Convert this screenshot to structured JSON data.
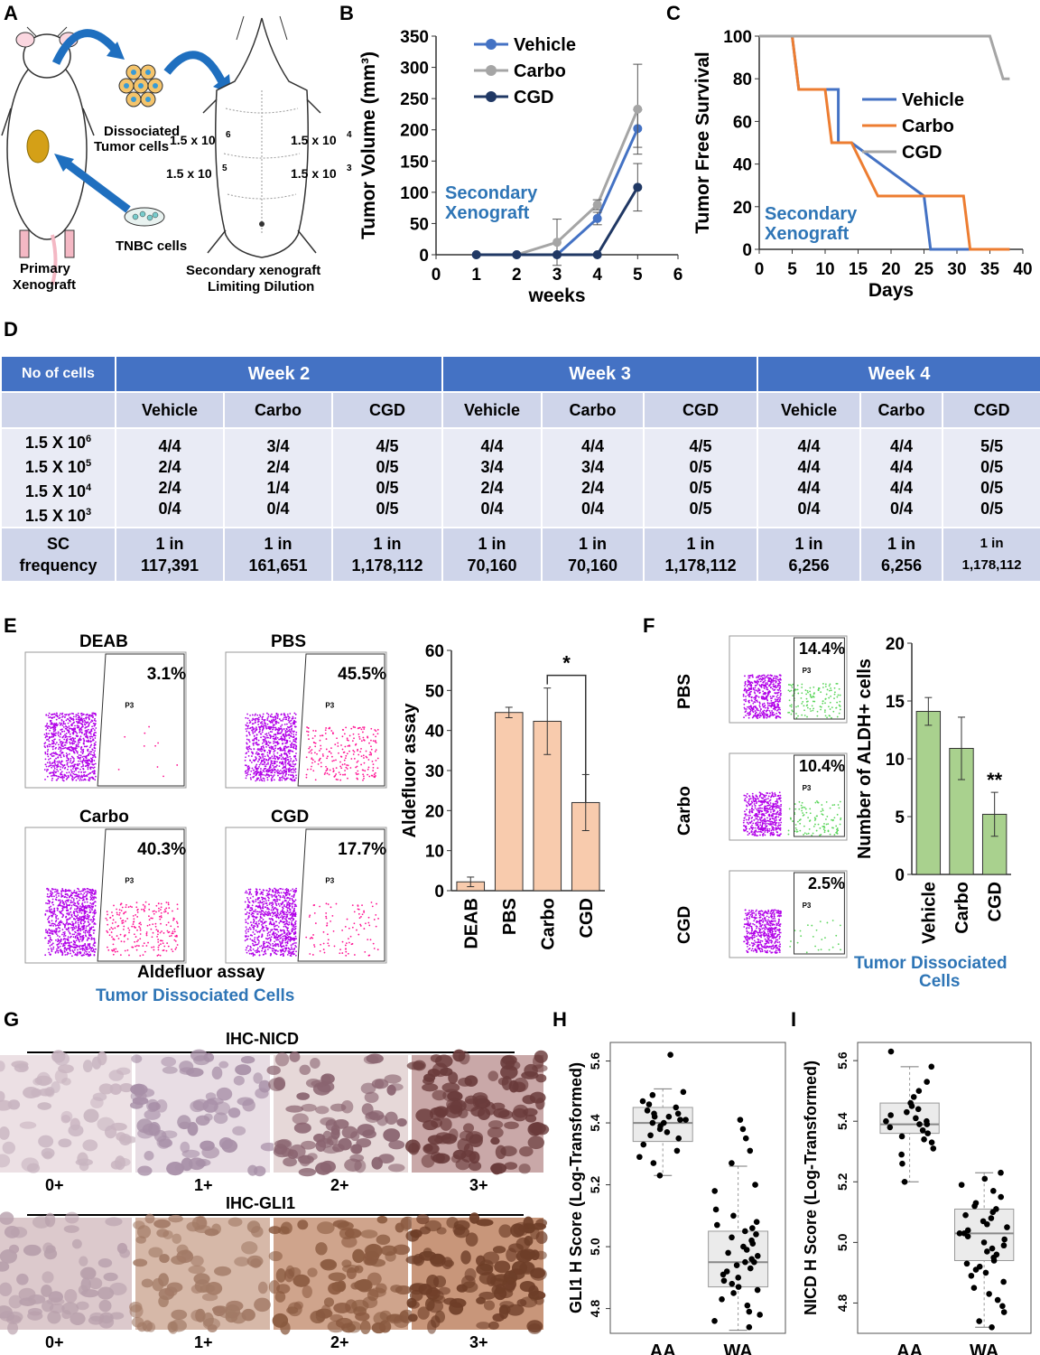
{
  "panels": {
    "A": "A",
    "B": "B",
    "C": "C",
    "D": "D",
    "E": "E",
    "F": "F",
    "G": "G",
    "H": "H",
    "I": "I"
  },
  "panel_a": {
    "dissociated": "Dissociated",
    "tumor_cells": "Tumor cells",
    "tnbc": "TNBC cells",
    "primary1": "Primary",
    "primary2": "Xenograft",
    "secondary1": "Secondary  xenograft",
    "secondary2": "Limiting Dilution",
    "dose_1e6": "1.5 x 10",
    "exp_6": "6",
    "dose_1e5": "1.5 x 10",
    "exp_5": "5",
    "dose_1e4": "1.5 x 10",
    "exp_4": "4",
    "dose_1e3": "1.5 x 10",
    "exp_3": "3"
  },
  "chart_data": [
    {
      "id": "B",
      "type": "line",
      "ylabel": "Tumor Volume (mm³)",
      "xlabel": "weeks",
      "annotation": [
        "Secondary",
        "Xenograft"
      ],
      "xlim": [
        0,
        6
      ],
      "ylim": [
        0,
        350
      ],
      "xticks": [
        "0",
        "1",
        "2",
        "3",
        "4",
        "5",
        "6"
      ],
      "yticks": [
        "0",
        "50",
        "100",
        "150",
        "200",
        "250",
        "300",
        "350"
      ],
      "x": [
        1,
        2,
        3,
        4,
        5
      ],
      "series": [
        {
          "name": "Vehicle",
          "color": "#4472c4",
          "values": [
            0,
            0,
            0,
            58,
            202
          ],
          "err": [
            0,
            0,
            0,
            10,
            30
          ]
        },
        {
          "name": "Carbo",
          "color": "#a5a5a5",
          "values": [
            0,
            0,
            20,
            80,
            233
          ],
          "err": [
            0,
            0,
            37,
            8,
            72
          ]
        },
        {
          "name": "CGD",
          "color": "#203864",
          "values": [
            0,
            0,
            0,
            0,
            108
          ],
          "err": [
            0,
            0,
            0,
            0,
            38
          ]
        }
      ]
    },
    {
      "id": "C",
      "type": "line",
      "ylabel": "Tumor Free Survival",
      "xlabel": "Days",
      "annotation": [
        "Secondary",
        "Xenograft"
      ],
      "xlim": [
        0,
        40
      ],
      "ylim": [
        0,
        100
      ],
      "xticks": [
        "0",
        "5",
        "10",
        "15",
        "20",
        "25",
        "30",
        "35",
        "40"
      ],
      "yticks": [
        "0",
        "20",
        "40",
        "60",
        "80",
        "100"
      ],
      "series": [
        {
          "name": "Vehicle",
          "color": "#4472c4",
          "x": [
            5,
            6,
            12,
            12,
            14,
            25,
            26,
            38
          ],
          "values": [
            100,
            75,
            75,
            50,
            50,
            25,
            0,
            0
          ]
        },
        {
          "name": "Carbo",
          "color": "#ed7d31",
          "x": [
            5,
            6,
            10,
            11,
            13,
            14,
            18,
            31,
            32,
            38
          ],
          "values": [
            100,
            75,
            75,
            50,
            50,
            50,
            25,
            25,
            0,
            0
          ]
        },
        {
          "name": "CGD",
          "color": "#a5a5a5",
          "x": [
            0,
            35,
            37,
            38
          ],
          "values": [
            100,
            100,
            80,
            80
          ]
        }
      ]
    },
    {
      "id": "E_bar",
      "type": "bar",
      "ylabel": "Aldefluor assay",
      "categories": [
        "DEAB",
        "PBS",
        "Carbo",
        "CGD"
      ],
      "values": [
        2.2,
        44.5,
        42.3,
        22
      ],
      "err": [
        1.2,
        1.3,
        8.3,
        7
      ],
      "ylim": [
        0,
        60
      ],
      "yticks": [
        "0",
        "10",
        "20",
        "30",
        "40",
        "50",
        "60"
      ],
      "significance": "*",
      "color": "#f8cbad"
    },
    {
      "id": "F_bar",
      "type": "bar",
      "ylabel": "Number of ALDH+ cells",
      "categories": [
        "Vehicle",
        "Carbo",
        "CGD"
      ],
      "values": [
        14.1,
        10.9,
        5.2
      ],
      "err": [
        1.2,
        2.7,
        1.9
      ],
      "ylim": [
        0,
        20
      ],
      "yticks": [
        "0",
        "5",
        "10",
        "15",
        "20"
      ],
      "significance": "**",
      "color": "#a9d18e"
    },
    {
      "id": "H",
      "type": "scatter",
      "ylabel": "GLI1 H Score (Log-Transformed)",
      "categories": [
        "AA",
        "WA"
      ],
      "yticks": [
        "4.8",
        "5.0",
        "5.2",
        "5.4",
        "5.6"
      ],
      "ylim": [
        4.72,
        5.66
      ],
      "AA_values": [
        5.62,
        5.5,
        5.49,
        5.47,
        5.46,
        5.45,
        5.44,
        5.43,
        5.43,
        5.42,
        5.42,
        5.41,
        5.41,
        5.4,
        5.4,
        5.39,
        5.38,
        5.37,
        5.36,
        5.35,
        5.33,
        5.31,
        5.29,
        5.27,
        5.23
      ],
      "WA_values": [
        5.41,
        5.38,
        5.35,
        5.31,
        5.27,
        5.2,
        5.18,
        5.12,
        5.1,
        5.08,
        5.07,
        5.06,
        5.05,
        5.04,
        5.03,
        5.02,
        5.01,
        5.0,
        4.99,
        4.98,
        4.97,
        4.96,
        4.95,
        4.95,
        4.94,
        4.93,
        4.92,
        4.91,
        4.9,
        4.89,
        4.88,
        4.87,
        4.86,
        4.85,
        4.83,
        4.81,
        4.79,
        4.78,
        4.76,
        4.74
      ],
      "AA_box": [
        5.34,
        5.4,
        5.45,
        5.23,
        5.51
      ],
      "WA_box": [
        4.87,
        4.95,
        5.05,
        4.73,
        5.26
      ]
    },
    {
      "id": "I",
      "type": "scatter",
      "ylabel": "NICD H Score (Log-Transformed)",
      "categories": [
        "AA",
        "WA"
      ],
      "yticks": [
        "4.8",
        "5.0",
        "5.2",
        "5.4",
        "5.6"
      ],
      "ylim": [
        4.7,
        5.66
      ],
      "AA_values": [
        5.63,
        5.58,
        5.53,
        5.5,
        5.48,
        5.46,
        5.45,
        5.44,
        5.43,
        5.42,
        5.41,
        5.4,
        5.4,
        5.39,
        5.39,
        5.38,
        5.37,
        5.36,
        5.35,
        5.34,
        5.33,
        5.31,
        5.29,
        5.26,
        5.2
      ],
      "WA_values": [
        5.23,
        5.21,
        5.19,
        5.17,
        5.15,
        5.13,
        5.12,
        5.11,
        5.1,
        5.09,
        5.08,
        5.07,
        5.06,
        5.05,
        5.04,
        5.03,
        5.03,
        5.02,
        5.01,
        5.0,
        4.99,
        4.98,
        4.97,
        4.96,
        4.95,
        4.94,
        4.93,
        4.92,
        4.91,
        4.9,
        4.89,
        4.87,
        4.85,
        4.83,
        4.81,
        4.79,
        4.77,
        4.74,
        4.72
      ],
      "AA_box": [
        5.36,
        5.39,
        5.46,
        5.2,
        5.58
      ],
      "WA_box": [
        4.94,
        5.03,
        5.11,
        4.72,
        5.23
      ]
    }
  ],
  "table_d": {
    "corner": "No of cells",
    "weeks": [
      "Week 2",
      "Week 3",
      "Week 4"
    ],
    "groups": [
      "Vehicle",
      "Carbo",
      "CGD",
      "Vehicle",
      "Carbo",
      "CGD",
      "Vehicle",
      "Carbo",
      "CGD"
    ],
    "doses": [
      {
        "base": "1.5 X 10",
        "exp": "6"
      },
      {
        "base": "1.5 X 10",
        "exp": "5"
      },
      {
        "base": "1.5 X 10",
        "exp": "4"
      },
      {
        "base": "1.5 X 10",
        "exp": "3"
      }
    ],
    "cells": [
      [
        "4/4",
        "2/4",
        "2/4",
        "0/4"
      ],
      [
        "3/4",
        "2/4",
        "1/4",
        "0/4"
      ],
      [
        "4/5",
        "0/5",
        "0/5",
        "0/5"
      ],
      [
        "4/4",
        "3/4",
        "2/4",
        "0/4"
      ],
      [
        "4/4",
        "3/4",
        "2/4",
        "0/4"
      ],
      [
        "4/5",
        "0/5",
        "0/5",
        "0/5"
      ],
      [
        "4/4",
        "4/4",
        "4/4",
        "0/4"
      ],
      [
        "4/4",
        "4/4",
        "4/4",
        "0/4"
      ],
      [
        "5/5",
        "0/5",
        "0/5",
        "0/5"
      ]
    ],
    "sc_label": [
      "SC",
      "frequency"
    ],
    "sc_prefix": "1 in",
    "sc_values": [
      "117,391",
      "161,651",
      "1,178,112",
      "70,160",
      "70,160",
      "1,178,112",
      "6,256",
      "6,256",
      "1,178,112"
    ]
  },
  "panel_e": {
    "facs": [
      {
        "label": "DEAB",
        "pct": "3.1%"
      },
      {
        "label": "PBS",
        "pct": "45.5%"
      },
      {
        "label": "Carbo",
        "pct": "40.3%"
      },
      {
        "label": "CGD",
        "pct": "17.7%"
      }
    ],
    "gate": "P3",
    "xaxis": "Aldefluor assay",
    "subtitle": "Tumor Dissociated Cells"
  },
  "panel_f": {
    "facs": [
      {
        "label": "PBS",
        "pct": "14.4%"
      },
      {
        "label": "Carbo",
        "pct": "10.4%"
      },
      {
        "label": "CGD",
        "pct": "2.5%"
      }
    ],
    "subtitle1": "Tumor Dissociated",
    "subtitle2": "Cells"
  },
  "panel_g": {
    "nicd_title": "IHC-NICD",
    "gli1_title": "IHC-GLI1",
    "scores": [
      "0+",
      "1+",
      "2+",
      "3+"
    ]
  },
  "colors": {
    "blue_text": "#2e75b6",
    "table_header": "#4472c4"
  }
}
